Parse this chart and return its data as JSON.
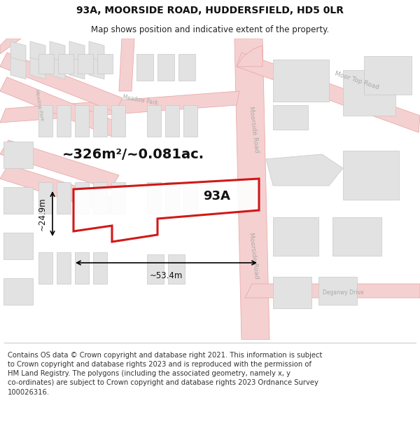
{
  "title": "93A, MOORSIDE ROAD, HUDDERSFIELD, HD5 0LR",
  "subtitle": "Map shows position and indicative extent of the property.",
  "footer": "Contains OS data © Crown copyright and database right 2021. This information is subject\nto Crown copyright and database rights 2023 and is reproduced with the permission of\nHM Land Registry. The polygons (including the associated geometry, namely x, y\nco-ordinates) are subject to Crown copyright and database rights 2023 Ordnance Survey\n100026316.",
  "area_label": "~326m²/~0.081ac.",
  "plot_label": "93A",
  "dim_width": "~53.4m",
  "dim_height": "~24.9m",
  "bg_color": "#ffffff",
  "map_bg": "#f7f7f7",
  "building_fill": "#e2e2e2",
  "building_edge": "#c8c8c8",
  "road_fill": "#f5d0d0",
  "road_edge": "#e8aaaa",
  "plot_color": "#cc0000",
  "label_color": "#aaaaaa",
  "title_fontsize": 10,
  "subtitle_fontsize": 8.5,
  "footer_fontsize": 7.2,
  "area_fontsize": 14,
  "plot_label_fontsize": 13,
  "dim_fontsize": 8.5
}
